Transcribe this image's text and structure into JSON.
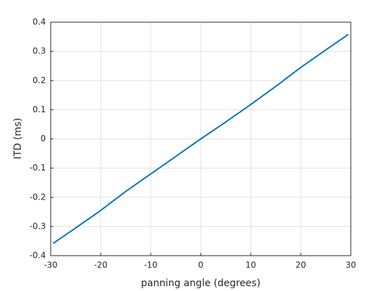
{
  "chart_data": {
    "type": "line",
    "x_label": "panning angle (degrees)",
    "y_label": "ITD (ms)",
    "x": [
      -29.5,
      -25,
      -20,
      -15,
      -10,
      -5,
      0,
      5,
      10,
      15,
      20,
      25,
      29.5
    ],
    "series": [
      {
        "color": "#0072bd",
        "values": [
          -0.358,
          -0.305,
          -0.245,
          -0.18,
          -0.12,
          -0.06,
          0,
          0.058,
          0.118,
          0.18,
          0.245,
          0.305,
          0.358
        ]
      }
    ],
    "xlim": [
      -30,
      30
    ],
    "xticks": [
      -30,
      -20,
      -10,
      0,
      10,
      20,
      30
    ],
    "ylim": [
      -0.4,
      0.4
    ],
    "yticks": [
      -0.4,
      -0.3,
      -0.2,
      -0.1,
      0,
      0.1,
      0.2,
      0.3,
      0.4
    ],
    "grid": true
  }
}
